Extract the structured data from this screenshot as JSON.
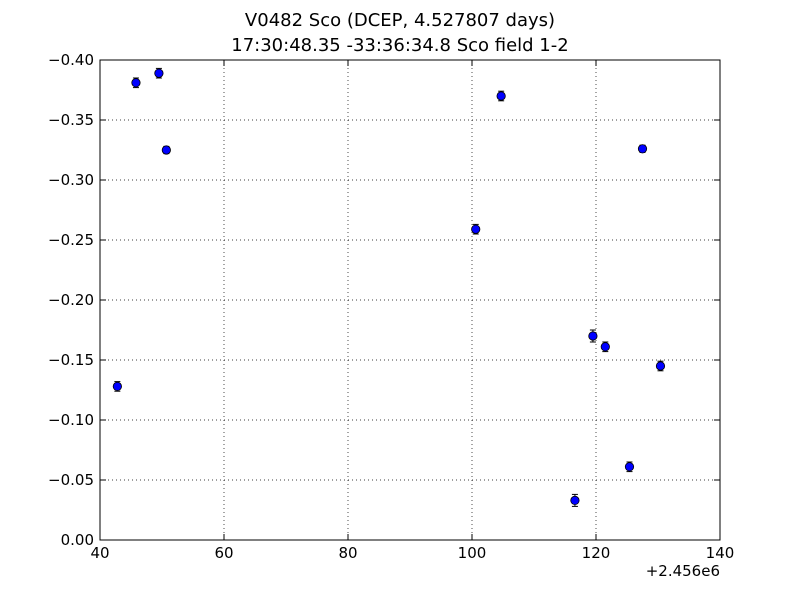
{
  "chart_data": {
    "type": "scatter",
    "title": "V0482 Sco (DCEP, 4.527807 days)",
    "subtitle": "17:30:48.35 -33:36:34.8 Sco field 1-2",
    "xlabel": "",
    "ylabel": "",
    "x_offset_label": "+2.456e6",
    "xlim": [
      40,
      140
    ],
    "ylim": [
      0.0,
      -0.4
    ],
    "y_inverted": true,
    "grid": true,
    "grid_style": "dotted",
    "marker_color": "#0000ff",
    "x_ticks": [
      40,
      60,
      80,
      100,
      120,
      140
    ],
    "x_tick_labels": [
      "40",
      "60",
      "80",
      "100",
      "120",
      "140"
    ],
    "y_ticks": [
      -0.4,
      -0.35,
      -0.3,
      -0.25,
      -0.2,
      -0.15,
      -0.1,
      -0.05,
      0.0
    ],
    "y_tick_labels": [
      "−0.40",
      "−0.35",
      "−0.30",
      "−0.25",
      "−0.20",
      "−0.15",
      "−0.10",
      "−0.05",
      "0.00"
    ],
    "points": [
      {
        "x": 42.8,
        "y": -0.128,
        "err": 0.004
      },
      {
        "x": 45.8,
        "y": -0.381,
        "err": 0.004
      },
      {
        "x": 49.5,
        "y": -0.389,
        "err": 0.004
      },
      {
        "x": 50.7,
        "y": -0.325,
        "err": 0.003
      },
      {
        "x": 100.6,
        "y": -0.259,
        "err": 0.004
      },
      {
        "x": 104.7,
        "y": -0.37,
        "err": 0.004
      },
      {
        "x": 116.6,
        "y": -0.033,
        "err": 0.005
      },
      {
        "x": 119.5,
        "y": -0.17,
        "err": 0.005
      },
      {
        "x": 121.5,
        "y": -0.161,
        "err": 0.004
      },
      {
        "x": 125.4,
        "y": -0.061,
        "err": 0.004
      },
      {
        "x": 127.5,
        "y": -0.326,
        "err": 0.003
      },
      {
        "x": 130.4,
        "y": -0.145,
        "err": 0.004
      }
    ]
  }
}
